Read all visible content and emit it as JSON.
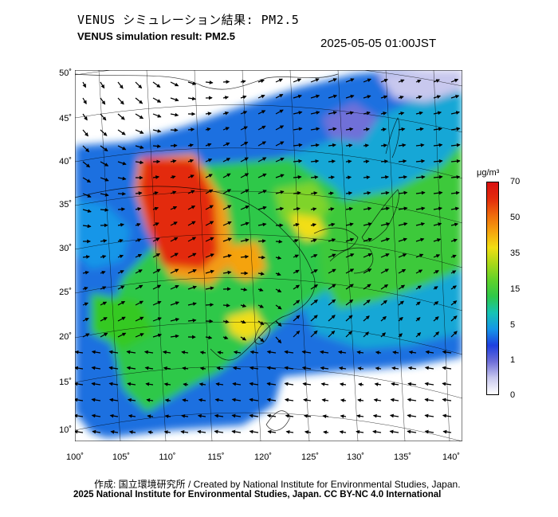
{
  "header": {
    "title_jp": "VENUS シミュレーション結果: PM2.5",
    "title_en": "VENUS simulation result: PM2.5",
    "datetime": "2025-05-05 01:00JST"
  },
  "map": {
    "region": "East Asia",
    "variable": "PM2.5",
    "lat_labels": [
      "50˚",
      "45˚",
      "40˚",
      "35˚",
      "30˚",
      "25˚",
      "20˚",
      "15˚",
      "10˚"
    ],
    "lon_labels": [
      "100˚",
      "105˚",
      "110˚",
      "115˚",
      "120˚",
      "125˚",
      "130˚",
      "135˚",
      "140˚"
    ],
    "hotspot_description_colors": {
      "very_high": "#e8230f",
      "high": "#f39c12",
      "medium": "#f5d60e",
      "moderate": "#34c924",
      "low": "#16c3b4",
      "lower": "#1e6fe0",
      "lowest": "#c8c8ee"
    },
    "wind_vectors_shown": true
  },
  "colorbar": {
    "unit": "μg/m³",
    "ticks": [
      "70",
      "50",
      "35",
      "15",
      "5",
      "1",
      "0"
    ],
    "colors": [
      "#ffffff",
      "#c8c8ee",
      "#6f6fd8",
      "#1e40e0",
      "#1596e8",
      "#16c3b4",
      "#2ec84a",
      "#5fd22a",
      "#a8d818",
      "#f2de12",
      "#f5a30e",
      "#ef6a0c",
      "#e32b0c",
      "#d81010"
    ]
  },
  "footer": {
    "credit_jp": "作成: 国立環境研究所 / Created by National Institute for Environmental Studies, Japan.",
    "credit_en": "2025 National Institute for Environmental Studies, Japan. CC BY-NC 4.0 International"
  }
}
